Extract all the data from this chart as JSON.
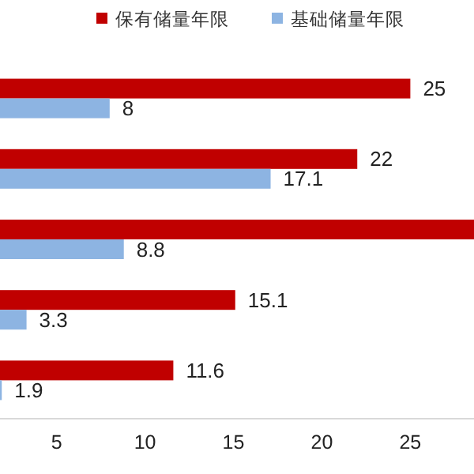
{
  "chart_data": {
    "type": "bar",
    "orientation": "horizontal",
    "categories": [
      null,
      null,
      null,
      null,
      null
    ],
    "series": [
      {
        "name": "保有储量年限",
        "color": "#c00000",
        "values": [
          25,
          22,
          28.6,
          15.1,
          11.6
        ],
        "value_labels": [
          "25",
          "22",
          null,
          "15.1",
          "11.6"
        ]
      },
      {
        "name": "基础储量年限",
        "color": "#8db4e2",
        "values": [
          8,
          17.1,
          8.8,
          3.3,
          1.9
        ],
        "value_labels": [
          "8",
          "17.1",
          "8.8",
          "3.3",
          "1.9"
        ]
      }
    ],
    "xlim": [
      1.8,
      28.6
    ],
    "xticks": [
      5,
      10,
      15,
      20,
      25
    ],
    "legend": "top"
  }
}
